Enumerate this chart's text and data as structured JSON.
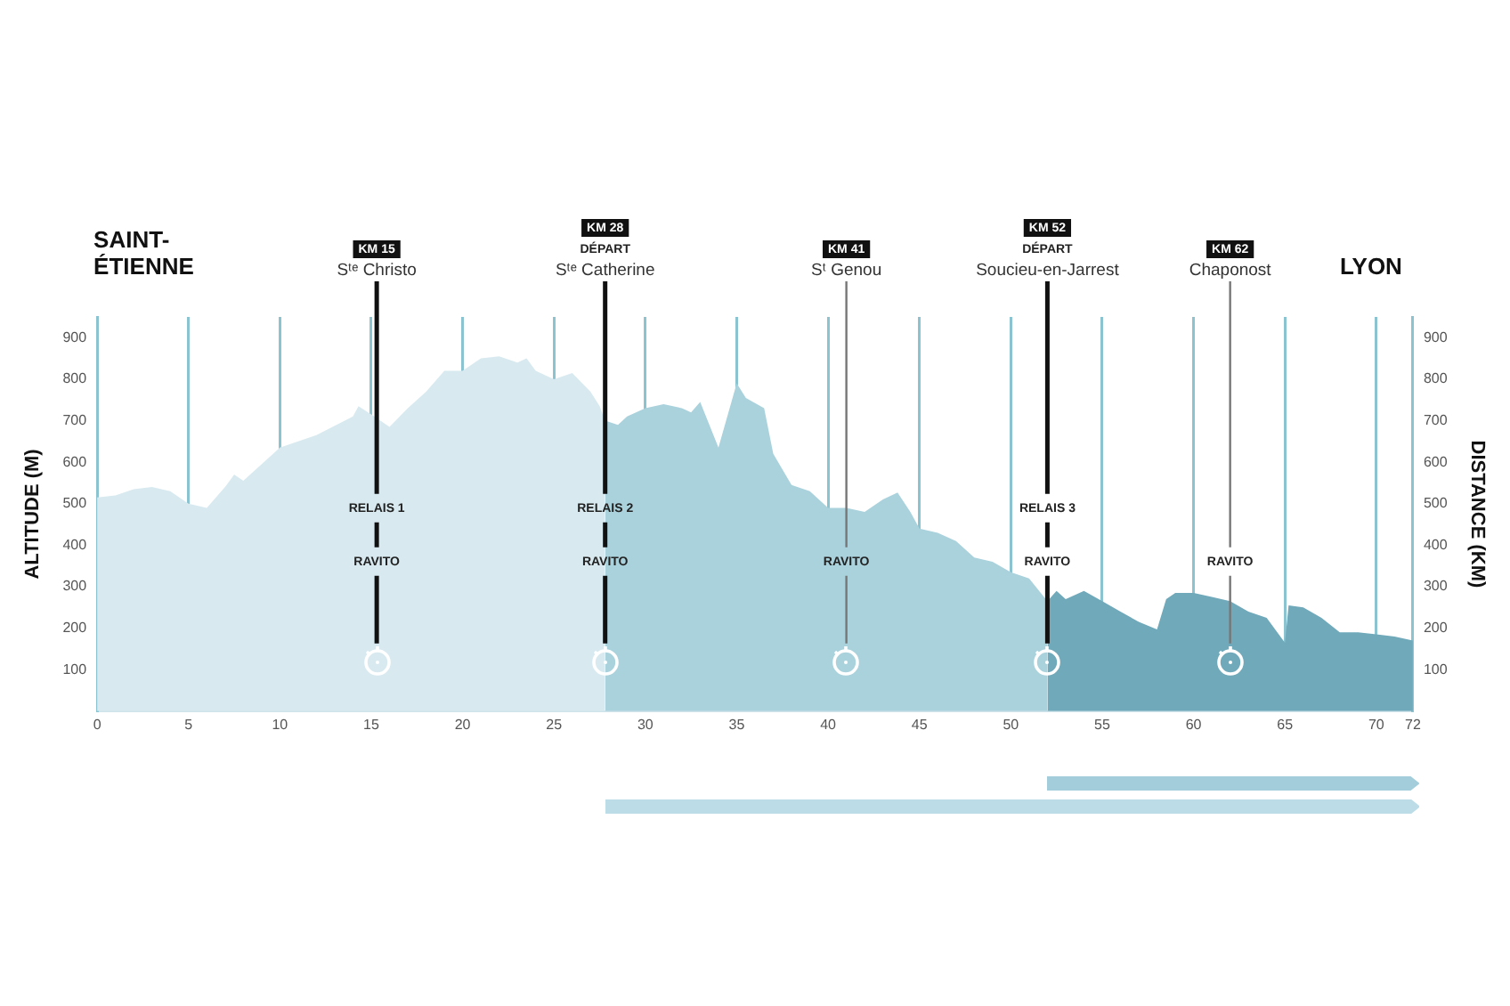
{
  "chart_data": {
    "type": "area",
    "ylabel": "ALTITUDE (M)",
    "y2label": "DISTANCE (KM)",
    "xlim": [
      0,
      72
    ],
    "xticks": [
      0,
      5,
      10,
      15,
      20,
      25,
      30,
      35,
      40,
      45,
      50,
      55,
      60,
      65,
      70,
      72
    ],
    "ylim": [
      0,
      950
    ],
    "yticks": [
      100,
      200,
      300,
      400,
      500,
      600,
      700,
      800,
      900
    ],
    "y2lim": [
      0,
      950
    ],
    "y2ticks": [
      100,
      200,
      300,
      400,
      500,
      600,
      700,
      800,
      900
    ],
    "grid": "x",
    "legend": false,
    "series": [
      {
        "color": "#d8eaf0",
        "x": [
          0,
          1,
          2,
          3,
          4,
          5,
          6,
          7,
          7.5,
          8,
          10,
          12,
          14,
          14.3,
          15,
          15.5,
          16,
          17,
          18,
          19,
          20,
          21,
          22,
          23,
          23.5,
          24,
          25,
          26,
          27,
          27.5,
          27.8
        ],
        "values": [
          515,
          520,
          535,
          540,
          530,
          500,
          490,
          540,
          570,
          555,
          635,
          665,
          710,
          735,
          715,
          700,
          685,
          730,
          770,
          820,
          820,
          850,
          855,
          840,
          850,
          820,
          800,
          815,
          770,
          735,
          700
        ]
      },
      {
        "color": "#aad2dd",
        "x": [
          27.8,
          28.5,
          29,
          30,
          31,
          32,
          32.5,
          33,
          34,
          35,
          35.5,
          36.5,
          37,
          38,
          39,
          40,
          41,
          42,
          43,
          43.8,
          44.5,
          45,
          46,
          47,
          48,
          49,
          50,
          51,
          52
        ],
        "values": [
          700,
          690,
          710,
          730,
          740,
          730,
          720,
          745,
          635,
          790,
          755,
          730,
          620,
          545,
          530,
          490,
          490,
          480,
          510,
          527,
          480,
          440,
          430,
          410,
          370,
          360,
          335,
          320,
          265
        ]
      },
      {
        "color": "#70a9ba",
        "x": [
          52,
          52.5,
          53,
          54,
          55,
          56,
          57,
          58,
          58.5,
          59,
          60,
          61,
          62,
          63,
          64,
          65,
          65.2,
          66,
          67,
          68,
          69,
          70,
          71,
          72
        ],
        "values": [
          265,
          290,
          270,
          290,
          265,
          240,
          215,
          197,
          270,
          285,
          285,
          275,
          265,
          240,
          225,
          165,
          255,
          250,
          225,
          190,
          190,
          185,
          180,
          170
        ]
      }
    ],
    "ref_lines": [
      {
        "axis": "x",
        "value": 15.3,
        "label": "KM 15\nSᵗᵉ Christo\n\nRELAIS 1\nRAVITO",
        "color": "#111111"
      },
      {
        "axis": "x",
        "value": 27.8,
        "label": "KM 28\nDÉPART\nSᵗᵉ Catherine\n\nRELAIS 2\nRAVITO",
        "color": "#111111"
      },
      {
        "axis": "x",
        "value": 41,
        "label": "KM 41\nSᵗ Genou\n\nRAVITO",
        "color": "#777777"
      },
      {
        "axis": "x",
        "value": 52,
        "label": "KM 52\nDÉPART\nSoucieu-en-Jarrest\n\nRELAIS 3\nRAVITO",
        "color": "#111111"
      },
      {
        "axis": "x",
        "value": 62,
        "label": "KM 62\nChaponost\n\nRAVITO",
        "color": "#777777"
      }
    ],
    "annotations": [
      "SAINT-ÉTIENNE",
      "LYON"
    ]
  }
}
